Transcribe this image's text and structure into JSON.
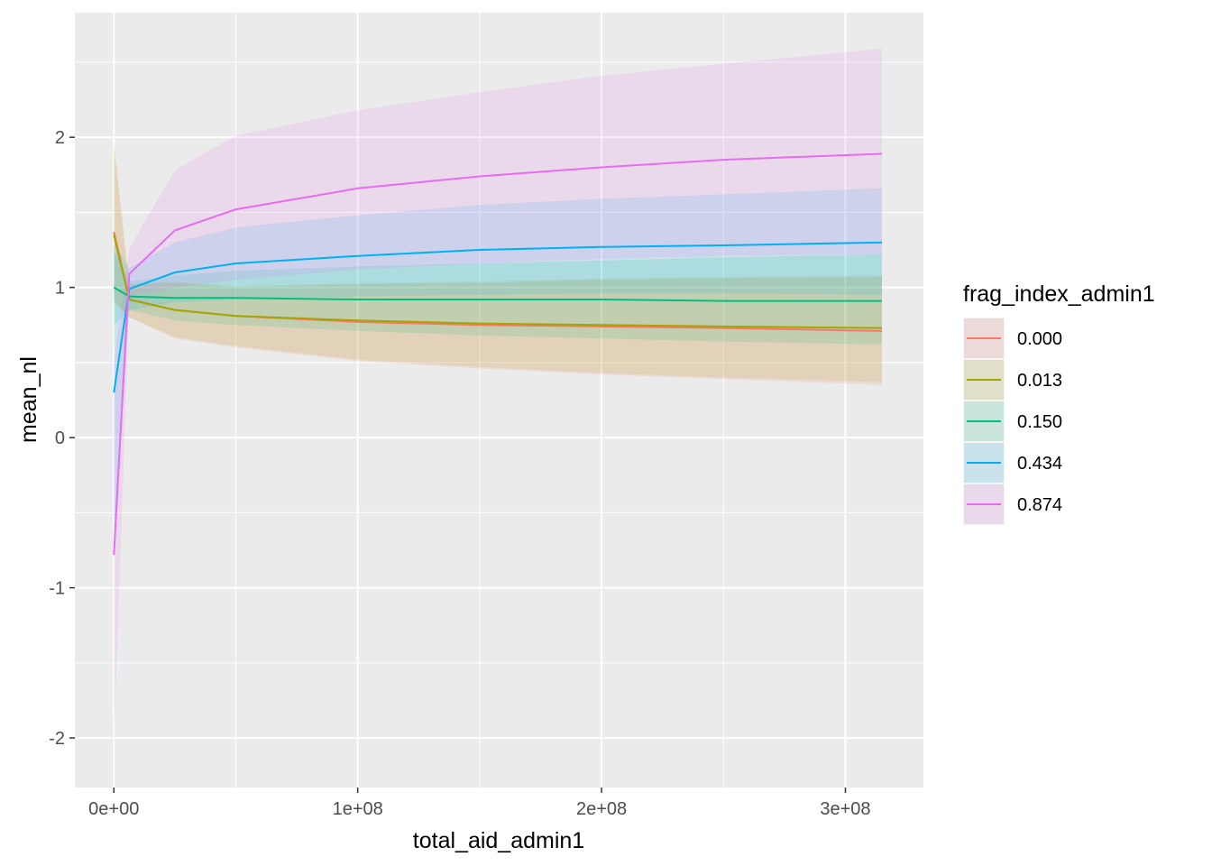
{
  "chart_data": {
    "type": "line",
    "xlabel": "total_aid_admin1",
    "ylabel": "mean_nl",
    "xlim": [
      -16000000,
      332000000
    ],
    "ylim": [
      -2.33,
      2.83
    ],
    "x_ticks": [
      {
        "value": 0,
        "label": "0e+00"
      },
      {
        "value": 100000000,
        "label": "1e+08"
      },
      {
        "value": 200000000,
        "label": "2e+08"
      },
      {
        "value": 300000000,
        "label": "3e+08"
      }
    ],
    "y_ticks": [
      {
        "value": -2,
        "label": "-2"
      },
      {
        "value": -1,
        "label": "-1"
      },
      {
        "value": 0,
        "label": "0"
      },
      {
        "value": 1,
        "label": "1"
      },
      {
        "value": 2,
        "label": "2"
      }
    ],
    "grid": true,
    "legend": {
      "title": "frag_index_admin1",
      "position": "right"
    },
    "x": [
      0,
      6300000,
      25000000,
      50000000,
      100000000,
      150000000,
      200000000,
      250000000,
      315000000
    ],
    "series": [
      {
        "name": "0.000",
        "color": "#F8766D",
        "values": [
          1.37,
          0.92,
          0.85,
          0.81,
          0.77,
          0.75,
          0.74,
          0.73,
          0.71
        ],
        "lower": [
          0.92,
          0.8,
          0.66,
          0.6,
          0.51,
          0.46,
          0.42,
          0.39,
          0.35
        ],
        "upper": [
          1.97,
          1.02,
          1.03,
          1.0,
          1.02,
          1.03,
          1.05,
          1.06,
          1.07
        ]
      },
      {
        "name": "0.013",
        "color": "#A3A500",
        "values": [
          1.35,
          0.92,
          0.85,
          0.81,
          0.78,
          0.76,
          0.75,
          0.74,
          0.73
        ],
        "lower": [
          0.9,
          0.8,
          0.67,
          0.61,
          0.52,
          0.47,
          0.43,
          0.4,
          0.37
        ],
        "upper": [
          1.94,
          1.02,
          1.04,
          1.01,
          1.03,
          1.04,
          1.06,
          1.07,
          1.08
        ]
      },
      {
        "name": "0.150",
        "color": "#00BF7D",
        "values": [
          1.0,
          0.94,
          0.93,
          0.93,
          0.92,
          0.92,
          0.92,
          0.91,
          0.91
        ],
        "lower": [
          0.75,
          0.85,
          0.78,
          0.75,
          0.71,
          0.68,
          0.66,
          0.64,
          0.62
        ],
        "upper": [
          1.25,
          1.04,
          1.08,
          1.11,
          1.14,
          1.16,
          1.18,
          1.2,
          1.22
        ]
      },
      {
        "name": "0.434",
        "color": "#00B0F6",
        "values": [
          0.3,
          0.99,
          1.1,
          1.16,
          1.21,
          1.25,
          1.27,
          1.28,
          1.3
        ],
        "lower": [
          -0.7,
          0.85,
          0.9,
          0.92,
          0.94,
          0.95,
          0.96,
          0.96,
          0.95
        ],
        "upper": [
          1.3,
          1.13,
          1.3,
          1.4,
          1.48,
          1.55,
          1.59,
          1.62,
          1.66
        ]
      },
      {
        "name": "0.874",
        "color": "#E76BF3",
        "values": [
          -0.78,
          1.09,
          1.38,
          1.52,
          1.66,
          1.74,
          1.8,
          1.85,
          1.89
        ],
        "lower": [
          -2.05,
          0.94,
          1.0,
          1.05,
          1.12,
          1.16,
          1.19,
          1.21,
          1.22
        ],
        "upper": [
          0.5,
          1.26,
          1.78,
          2.01,
          2.18,
          2.3,
          2.41,
          2.49,
          2.59
        ]
      }
    ]
  }
}
